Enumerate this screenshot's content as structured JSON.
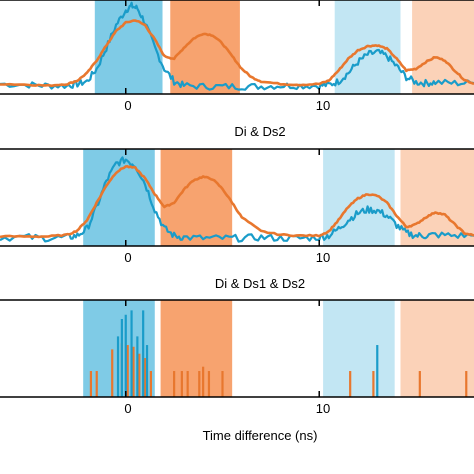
{
  "colors": {
    "blue_trace": "#1a9cc9",
    "orange_trace": "#e8772e",
    "blue_band": "#7fcbe6",
    "orange_band": "#f7a36f",
    "light_blue_band": "#c2e6f3",
    "light_orange_band": "#fbd2b8",
    "axis": "#000000"
  },
  "chart_data": [
    {
      "type": "line",
      "title": "",
      "xlabel": "Di & Ds2",
      "ylabel": "",
      "xlim": [
        -6.5,
        18
      ],
      "ylim": [
        0,
        1.12
      ],
      "xticks": [
        0,
        10
      ],
      "grid": false,
      "bands": [
        {
          "x0": -1.6,
          "x1": 1.9,
          "color": "blue"
        },
        {
          "x0": 2.3,
          "x1": 5.9,
          "color": "orange"
        },
        {
          "x0": 10.8,
          "x1": 14.2,
          "color": "light_blue"
        },
        {
          "x0": 14.8,
          "x1": 18.0,
          "color": "light_orange"
        }
      ],
      "series": [
        {
          "color": "blue",
          "x": [
            -6.5,
            -5,
            -4,
            -3,
            -2.5,
            -2,
            -1.5,
            -1,
            -0.5,
            0,
            0.3,
            0.6,
            1,
            1.5,
            2,
            2.5,
            3,
            4,
            5,
            6,
            7,
            8,
            9,
            10,
            10.5,
            11,
            11.5,
            12,
            12.5,
            13,
            13.5,
            14,
            14.5,
            15,
            15.5,
            16,
            17,
            18
          ],
          "y": [
            0.12,
            0.11,
            0.1,
            0.1,
            0.12,
            0.15,
            0.3,
            0.55,
            0.82,
            1.0,
            1.05,
            1.02,
            0.85,
            0.55,
            0.3,
            0.15,
            0.1,
            0.09,
            0.09,
            0.09,
            0.09,
            0.1,
            0.1,
            0.1,
            0.11,
            0.15,
            0.25,
            0.38,
            0.47,
            0.5,
            0.45,
            0.33,
            0.2,
            0.14,
            0.13,
            0.14,
            0.13,
            0.13
          ]
        },
        {
          "color": "orange",
          "x": [
            -6.5,
            -5,
            -4,
            -3,
            -2.5,
            -2,
            -1.5,
            -1,
            -0.5,
            0,
            0.5,
            1,
            1.5,
            2,
            2.5,
            3,
            3.5,
            4,
            4.5,
            5,
            5.5,
            6,
            6.5,
            7,
            8,
            9,
            10,
            10.5,
            11,
            11.5,
            12,
            12.5,
            13,
            13.5,
            14,
            14.5,
            15,
            15.5,
            16,
            16.5,
            17,
            17.5,
            18
          ],
          "y": [
            0.12,
            0.11,
            0.1,
            0.12,
            0.16,
            0.25,
            0.4,
            0.58,
            0.75,
            0.85,
            0.88,
            0.82,
            0.65,
            0.45,
            0.42,
            0.55,
            0.66,
            0.72,
            0.7,
            0.6,
            0.45,
            0.3,
            0.2,
            0.15,
            0.12,
            0.11,
            0.12,
            0.16,
            0.28,
            0.42,
            0.52,
            0.57,
            0.58,
            0.54,
            0.42,
            0.28,
            0.3,
            0.38,
            0.44,
            0.4,
            0.28,
            0.17,
            0.12
          ]
        }
      ]
    },
    {
      "type": "line",
      "title": "",
      "xlabel": "Di & Ds1 & Ds2",
      "ylabel": "",
      "xlim": [
        -6.5,
        18
      ],
      "ylim": [
        0,
        1.12
      ],
      "xticks": [
        0,
        10
      ],
      "grid": false,
      "bands": [
        {
          "x0": -2.2,
          "x1": 1.5,
          "color": "blue"
        },
        {
          "x0": 1.8,
          "x1": 5.5,
          "color": "orange"
        },
        {
          "x0": 10.2,
          "x1": 13.9,
          "color": "light_blue"
        },
        {
          "x0": 14.2,
          "x1": 18.0,
          "color": "light_orange"
        }
      ],
      "series": [
        {
          "color": "blue",
          "x": [
            -6.5,
            -5,
            -4,
            -3,
            -2.5,
            -2,
            -1.5,
            -1,
            -0.5,
            0,
            0.5,
            1,
            1.5,
            2,
            2.5,
            3,
            4,
            5,
            6,
            7,
            8,
            9,
            10,
            10.5,
            11,
            11.5,
            12,
            12.5,
            13,
            13.5,
            14,
            14.5,
            15,
            15.5,
            16,
            17,
            18
          ],
          "y": [
            0.1,
            0.1,
            0.09,
            0.1,
            0.12,
            0.2,
            0.45,
            0.75,
            0.95,
            1.0,
            0.93,
            0.72,
            0.42,
            0.2,
            0.12,
            0.1,
            0.09,
            0.09,
            0.09,
            0.1,
            0.09,
            0.09,
            0.1,
            0.12,
            0.2,
            0.3,
            0.38,
            0.42,
            0.41,
            0.35,
            0.24,
            0.15,
            0.12,
            0.12,
            0.13,
            0.12,
            0.12
          ]
        },
        {
          "color": "orange",
          "x": [
            -6.5,
            -5,
            -4,
            -3,
            -2.5,
            -2,
            -1.5,
            -1,
            -0.5,
            0,
            0.5,
            1,
            1.5,
            2,
            2.5,
            3,
            3.5,
            4,
            4.5,
            5,
            5.5,
            6,
            7,
            8,
            9,
            10,
            10.5,
            11,
            11.5,
            12,
            12.5,
            13,
            13.5,
            14,
            14.5,
            15,
            15.5,
            16,
            16.5,
            17,
            17.5,
            18
          ],
          "y": [
            0.11,
            0.11,
            0.11,
            0.13,
            0.18,
            0.3,
            0.5,
            0.7,
            0.85,
            0.92,
            0.9,
            0.78,
            0.6,
            0.45,
            0.5,
            0.65,
            0.76,
            0.8,
            0.77,
            0.66,
            0.5,
            0.33,
            0.17,
            0.13,
            0.12,
            0.12,
            0.17,
            0.3,
            0.45,
            0.55,
            0.6,
            0.58,
            0.5,
            0.35,
            0.22,
            0.25,
            0.33,
            0.39,
            0.36,
            0.25,
            0.15,
            0.12
          ]
        }
      ]
    },
    {
      "type": "line",
      "title": "",
      "xlabel": "Time difference (ns)",
      "ylabel": "",
      "xlim": [
        -6.5,
        18
      ],
      "ylim": [
        0,
        1.12
      ],
      "xticks": [
        0,
        10
      ],
      "grid": false,
      "bands": [
        {
          "x0": -2.2,
          "x1": 1.5,
          "color": "blue"
        },
        {
          "x0": 1.8,
          "x1": 5.5,
          "color": "orange"
        },
        {
          "x0": 10.2,
          "x1": 13.9,
          "color": "light_blue"
        },
        {
          "x0": 14.2,
          "x1": 18.0,
          "color": "light_orange"
        }
      ],
      "spikes": [
        {
          "color": "orange",
          "x": [
            -1.8,
            -1.5,
            -0.7,
            -0.2,
            0.1,
            0.4,
            0.7,
            1.0,
            1.3,
            2.5,
            2.9,
            3.2,
            3.8,
            4.0,
            4.3,
            5.0,
            11.6,
            12.8,
            15.2,
            17.6
          ],
          "y": [
            0.3,
            0.3,
            0.55,
            0.62,
            0.6,
            0.58,
            0.5,
            0.45,
            0.3,
            0.3,
            0.3,
            0.3,
            0.3,
            0.35,
            0.3,
            0.3,
            0.3,
            0.3,
            0.3,
            0.3
          ]
        },
        {
          "color": "blue",
          "x": [
            -0.4,
            -0.2,
            0.0,
            0.3,
            0.6,
            0.9,
            1.1,
            13.0
          ],
          "y": [
            0.7,
            0.9,
            0.95,
            1.0,
            0.7,
            1.0,
            0.6,
            0.6
          ]
        }
      ]
    }
  ],
  "captions": {
    "panel1": "Di & Ds2",
    "panel2": "Di & Ds1 & Ds2",
    "panel3": "Time difference (ns)"
  },
  "tick_labels": {
    "p1": [
      "0",
      "10"
    ],
    "p2": [
      "0",
      "10"
    ],
    "p3": [
      "0",
      "10"
    ]
  }
}
